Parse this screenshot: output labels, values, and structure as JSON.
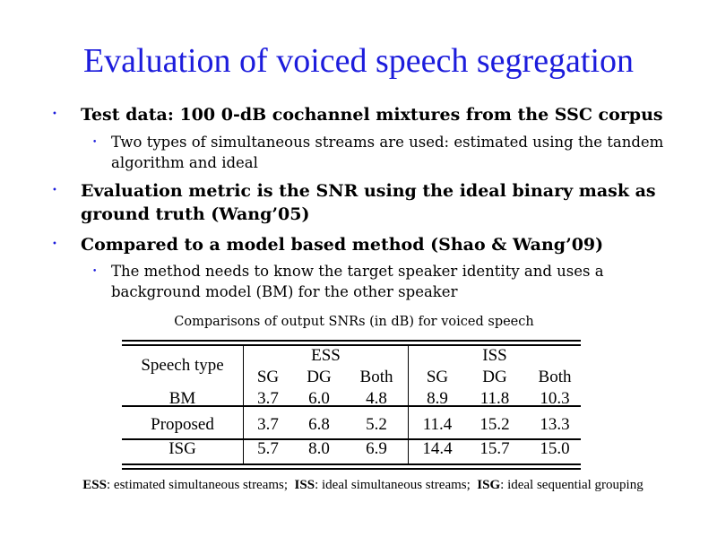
{
  "title": "Evaluation of voiced speech segregation",
  "bullets": [
    {
      "text": "Test data: 100 0-dB cochannel mixtures from the SSC corpus",
      "sub": "Two types of simultaneous streams are used: estimated using the tandem algorithm and ideal"
    },
    {
      "text": "Evaluation metric is the SNR using the ideal binary mask as ground truth (Wang’05)"
    },
    {
      "text": "Compared to a model based method (Shao & Wang’09)",
      "sub": "The method needs to know the target speaker identity and uses a background model (BM) for the other speaker"
    }
  ],
  "bullet_glyph": "•",
  "table": {
    "caption": "Comparisons of output SNRs (in dB) for voiced speech",
    "row_header": "Speech type",
    "groups": [
      "ESS",
      "ISS"
    ],
    "subcols": [
      "SG",
      "DG",
      "Both",
      "SG",
      "DG",
      "Both"
    ],
    "rows": [
      {
        "label": "BM",
        "values": [
          "3.7",
          "6.0",
          "4.8",
          "8.9",
          "11.8",
          "10.3"
        ]
      },
      {
        "label": "Proposed",
        "values": [
          "3.7",
          "6.8",
          "5.2",
          "11.4",
          "15.2",
          "13.3"
        ]
      },
      {
        "label": "ISG",
        "values": [
          "5.7",
          "8.0",
          "6.9",
          "14.4",
          "15.7",
          "15.0"
        ]
      }
    ]
  },
  "footnote": [
    {
      "abbr": "ESS",
      "text": ": estimated simultaneous streams;  "
    },
    {
      "abbr": "ISS",
      "text": ": ideal simultaneous streams;  "
    },
    {
      "abbr": "ISG",
      "text": ": ideal sequential grouping"
    }
  ],
  "colors": {
    "title": "#1c1cdc",
    "bullet": "#1c1cdc"
  }
}
